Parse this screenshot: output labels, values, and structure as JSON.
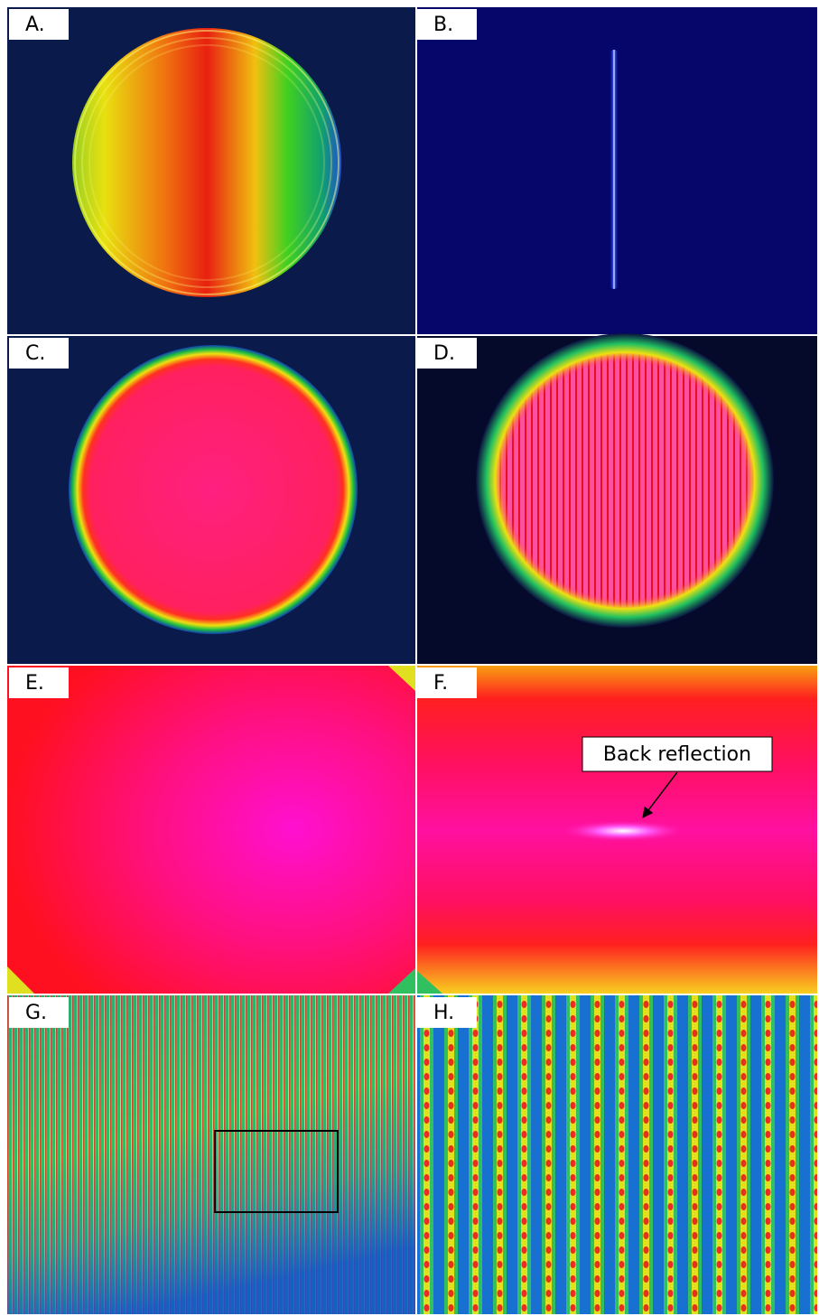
{
  "panels": [
    {
      "label": "A."
    },
    {
      "label": "B."
    },
    {
      "label": "C."
    },
    {
      "label": "D."
    },
    {
      "label": "E."
    },
    {
      "label": "F."
    },
    {
      "label": "G."
    },
    {
      "label": "H."
    }
  ],
  "annotation": {
    "text": "Back reflection"
  }
}
